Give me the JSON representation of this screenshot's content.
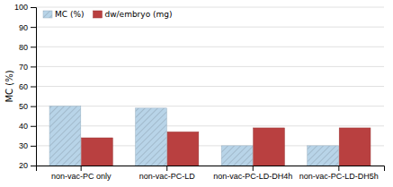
{
  "chart_data": {
    "type": "bar",
    "categories": [
      "non-vac-PC only",
      "non-vac-PC-LD",
      "non-vac-PC-LD-DH4h",
      "non-vac-PC-LD-DH5h"
    ],
    "series": [
      {
        "name": "MC (%)",
        "color": "#b8d4e8",
        "values": [
          50,
          49,
          30,
          30
        ]
      },
      {
        "name": "dw/embryo (mg)",
        "color": "#b94040",
        "values": [
          34,
          37,
          39,
          39
        ]
      }
    ],
    "ylabel": "MC (%)",
    "ylim": [
      20,
      100
    ],
    "yticks": [
      20,
      30,
      40,
      50,
      60,
      70,
      80,
      90,
      100
    ],
    "grid": true,
    "legend": "upper left"
  }
}
